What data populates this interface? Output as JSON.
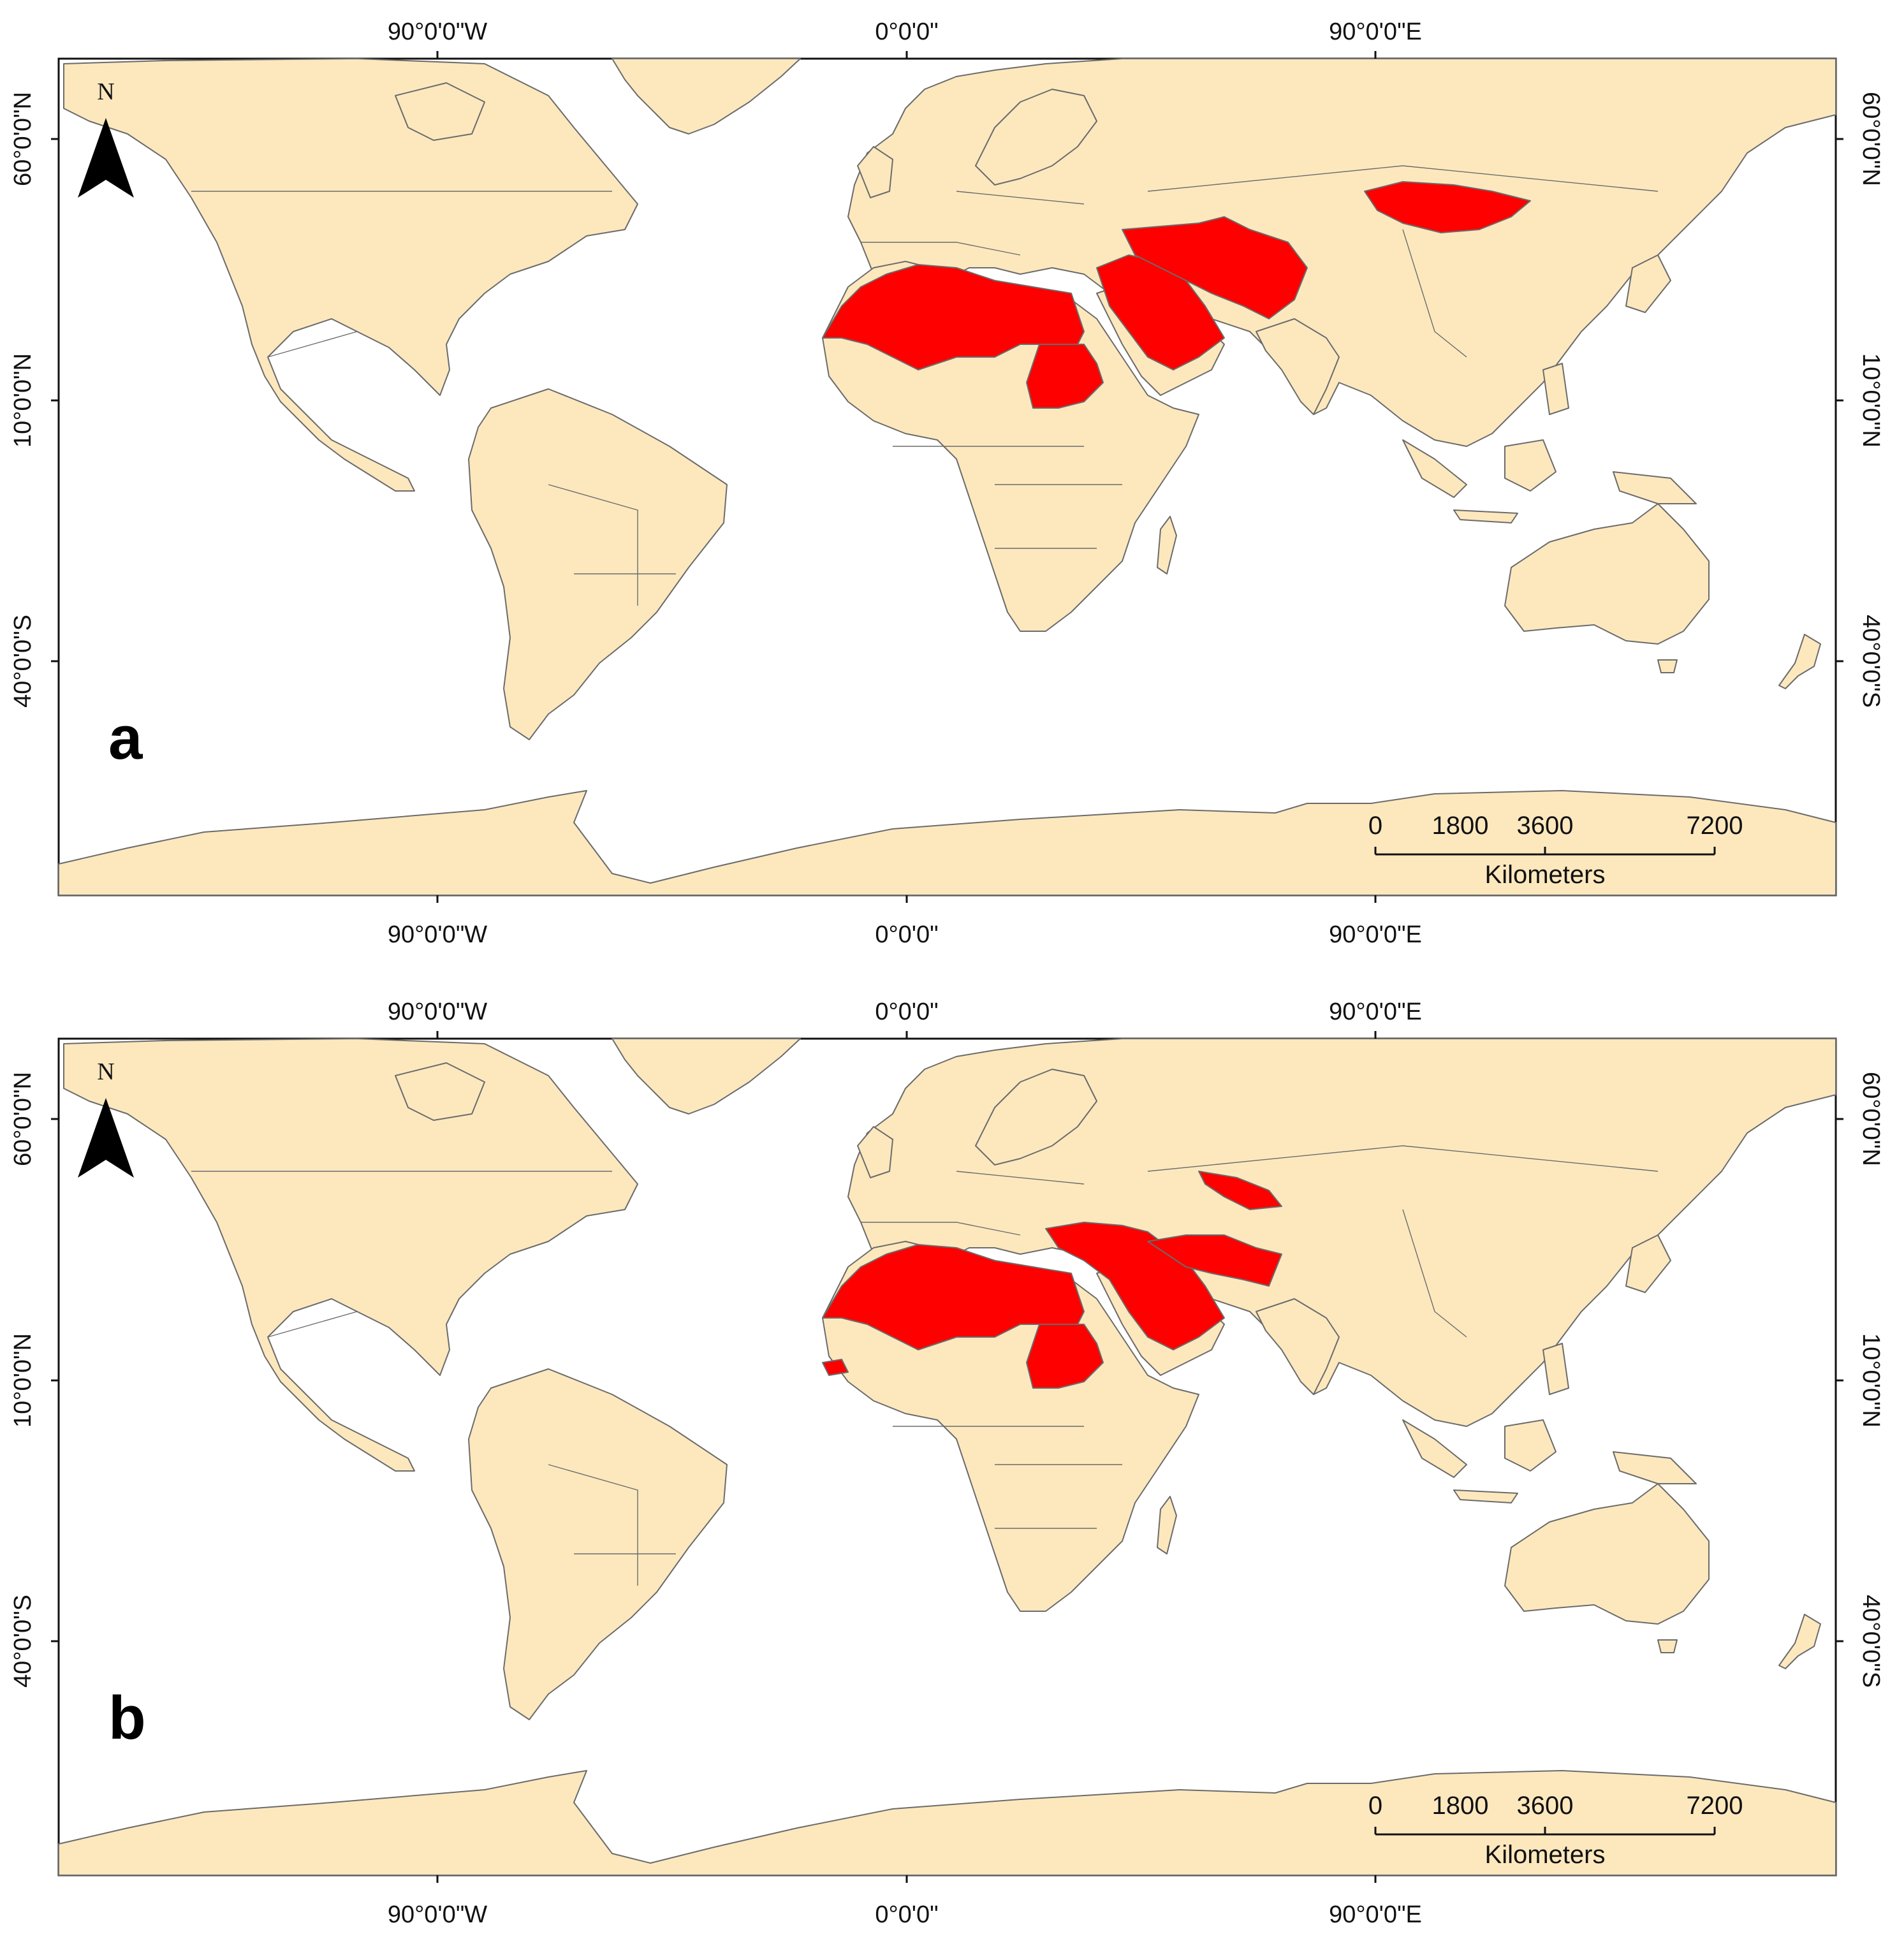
{
  "axes": {
    "lon_labels": [
      "90°0'0\"W",
      "0°0'0\"",
      "90°0'0\"E"
    ],
    "lat_labels": [
      "60°0'0\"N",
      "10°0'0\"N",
      "40°0'0\"S"
    ]
  },
  "north_arrow": {
    "label": "N"
  },
  "scale_bar": {
    "ticks": [
      "0",
      "1800",
      "3600",
      "7200"
    ],
    "unit": "Kilometers"
  },
  "colors": {
    "land": "#FDE8BE",
    "highlight": "#FF0000",
    "ocean": "#FFFFFF"
  },
  "panels": [
    {
      "letter": "a"
    },
    {
      "letter": "b"
    }
  ]
}
